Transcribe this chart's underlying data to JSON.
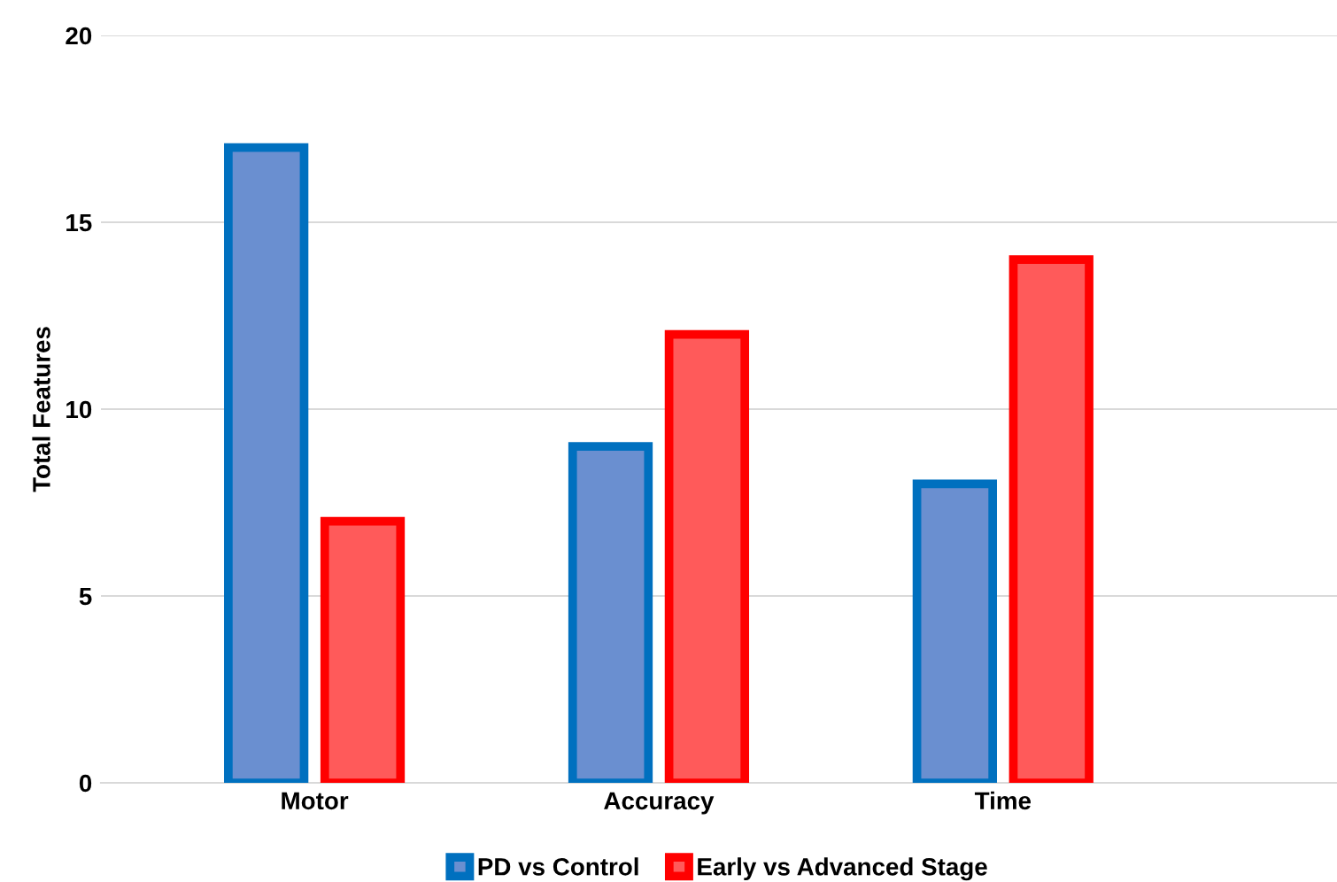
{
  "chart_data": {
    "type": "bar",
    "ylabel": "Total Features",
    "categories": [
      "Motor",
      "Accuracy",
      "Time"
    ],
    "series": [
      {
        "name": "PD vs Control",
        "color": "#6a8fd0",
        "values": [
          17,
          9,
          8
        ]
      },
      {
        "name": "Early vs Advanced Stage",
        "color": "#ff5a5a",
        "values": [
          7,
          12,
          14
        ]
      }
    ],
    "ylim": [
      0,
      20
    ],
    "yticks": [
      0,
      5,
      10,
      15,
      20
    ],
    "grid": "y",
    "legend": "bottom"
  }
}
